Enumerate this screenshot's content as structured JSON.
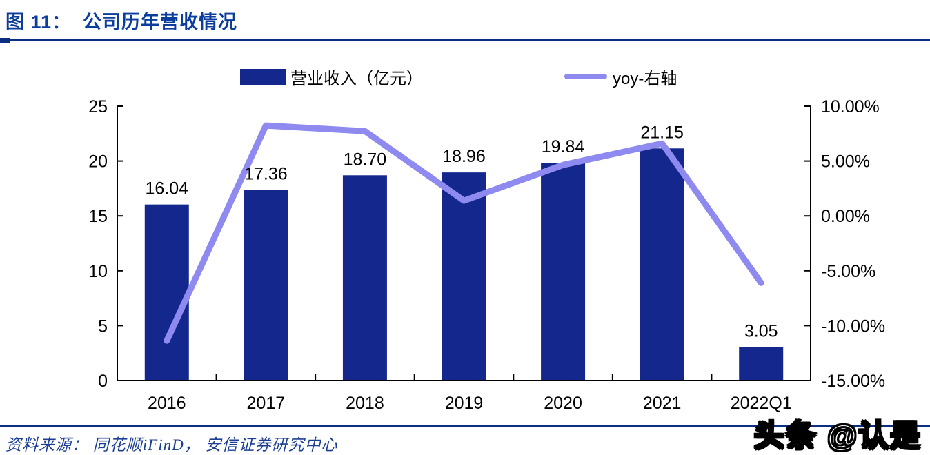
{
  "header": {
    "title": "图 11：  公司历年营收情况"
  },
  "legend": {
    "bar_label": "营业收入（亿元）",
    "line_label": "yoy-右轴"
  },
  "footer": {
    "source_text": "资料来源： 同花顺iFinD， 安信证券研究中心",
    "watermark": "头条 @认是"
  },
  "colors": {
    "bar": "#13278D",
    "line": "#8E8AF0",
    "title": "#0B3E9C",
    "rule": "#0A2E80",
    "source": "#1C3E94",
    "axis": "#000000",
    "label": "#000000"
  },
  "chart_data": {
    "type": "bar",
    "title": "公司历年营收情况",
    "categories": [
      "2016",
      "2017",
      "2018",
      "2019",
      "2020",
      "2021",
      "2022Q1"
    ],
    "series": [
      {
        "name": "营业收入（亿元）",
        "type": "bar",
        "axis": "left",
        "values": [
          16.04,
          17.36,
          18.7,
          18.96,
          19.84,
          21.15,
          3.05
        ],
        "labels": [
          "16.04",
          "17.36",
          "18.70",
          "18.96",
          "19.84",
          "21.15",
          "3.05"
        ]
      },
      {
        "name": "yoy-右轴",
        "type": "line",
        "axis": "right",
        "values": [
          -11.37,
          8.23,
          7.72,
          1.39,
          4.64,
          6.6,
          -6.1
        ],
        "unit": "%"
      }
    ],
    "left_axis": {
      "min": 0,
      "max": 25,
      "step": 5,
      "ticks": [
        "0",
        "5",
        "10",
        "15",
        "20",
        "25"
      ]
    },
    "right_axis": {
      "min": -15,
      "max": 10,
      "step": 5,
      "ticks": [
        "-15.00%",
        "-10.00%",
        "-5.00%",
        "0.00%",
        "5.00%",
        "10.00%"
      ]
    },
    "grid": false,
    "legend_position": "top"
  }
}
